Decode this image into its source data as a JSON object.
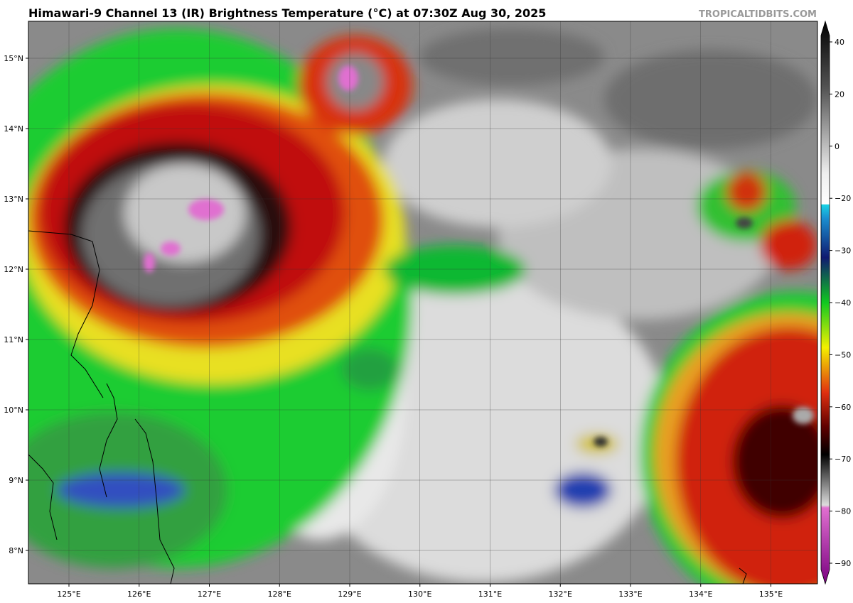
{
  "header": {
    "title": "Himawari-9 Channel 13 (IR) Brightness Temperature (°C) at 07:30Z Aug 30, 2025",
    "watermark": "TROPICALTIDBITS.COM"
  },
  "map": {
    "lon_labels": [
      "125°E",
      "126°E",
      "127°E",
      "128°E",
      "129°E",
      "130°E",
      "131°E",
      "132°E",
      "133°E",
      "134°E",
      "135°E"
    ],
    "lat_labels": [
      "15°N",
      "14°N",
      "13°N",
      "12°N",
      "11°N",
      "10°N",
      "9°N",
      "8°N"
    ]
  },
  "colorbar": {
    "ticks": [
      "40",
      "20",
      "0",
      "−20",
      "−30",
      "−40",
      "−50",
      "−60",
      "−70",
      "−80",
      "−90"
    ]
  }
}
